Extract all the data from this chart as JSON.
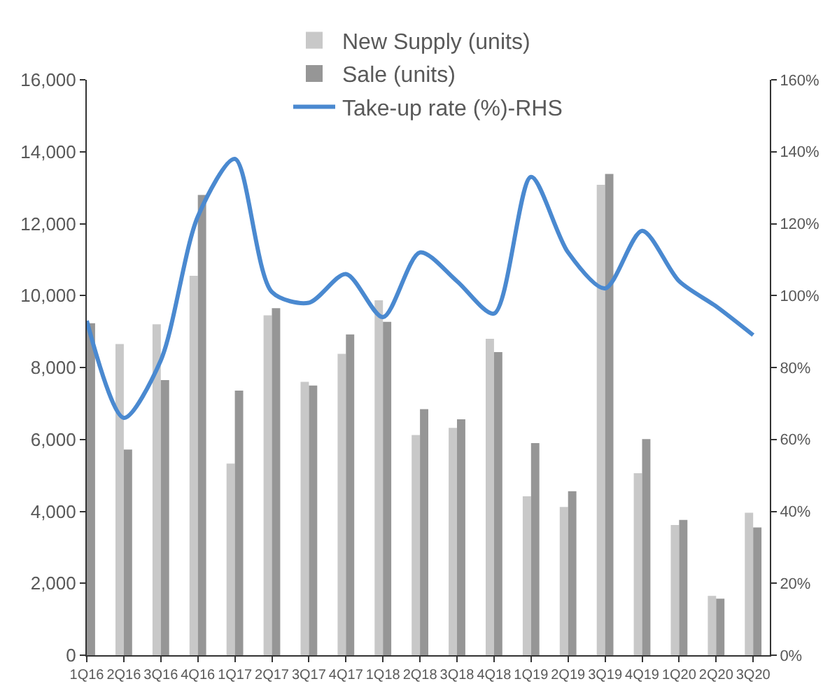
{
  "chart_data": {
    "type": "bar",
    "categories": [
      "1Q16",
      "2Q16",
      "3Q16",
      "4Q16",
      "1Q17",
      "2Q17",
      "3Q17",
      "4Q17",
      "1Q18",
      "2Q18",
      "3Q18",
      "4Q18",
      "1Q19",
      "2Q19",
      "3Q19",
      "4Q19",
      "1Q20",
      "2Q20",
      "3Q20"
    ],
    "series": [
      {
        "name": "New Supply (units)",
        "color": "#c8c8c8",
        "values": [
          null,
          8650,
          9200,
          10550,
          5330,
          9450,
          7600,
          8380,
          9870,
          6120,
          6320,
          8800,
          4420,
          4120,
          13080,
          5060,
          3620,
          1650,
          3960
        ]
      },
      {
        "name": "Sale (units)",
        "color": "#969696",
        "values": [
          9230,
          5720,
          7650,
          12800,
          7360,
          9650,
          7500,
          8920,
          9270,
          6840,
          6560,
          8430,
          5900,
          4560,
          13380,
          6010,
          3760,
          1570,
          3550
        ]
      },
      {
        "name": "Take-up rate (%)-RHS",
        "type": "line",
        "axis": "y2",
        "color": "#4a89d0",
        "values": [
          93,
          66,
          82,
          122,
          138,
          101,
          98,
          106,
          94,
          112,
          104,
          95,
          133,
          112,
          102,
          118,
          104,
          97,
          89
        ]
      }
    ],
    "ylim": [
      0,
      16000
    ],
    "yticks": [
      0,
      {
        "value": 2000,
        "label": "2,000"
      },
      {
        "value": 4000,
        "label": "4,000"
      },
      {
        "value": 6000,
        "label": "6,000"
      },
      {
        "value": 8000,
        "label": "8,000"
      },
      {
        "value": 10000,
        "label": "10,000"
      },
      {
        "value": 12000,
        "label": "12,000"
      },
      {
        "value": 14000,
        "label": "14,000"
      },
      {
        "value": 16000,
        "label": "16,000"
      }
    ],
    "y2lim": [
      0,
      160
    ],
    "y2ticks": [
      {
        "value": 0,
        "label": "0%"
      },
      {
        "value": 20,
        "label": "20%"
      },
      {
        "value": 40,
        "label": "40%"
      },
      {
        "value": 60,
        "label": "60%"
      },
      {
        "value": 80,
        "label": "80%"
      },
      {
        "value": 100,
        "label": "100%"
      },
      {
        "value": 120,
        "label": "120%"
      },
      {
        "value": 140,
        "label": "140%"
      },
      {
        "value": 160,
        "label": "160%"
      }
    ],
    "grid": false,
    "legend": "top",
    "marker": "none",
    "line_style": "solid"
  }
}
